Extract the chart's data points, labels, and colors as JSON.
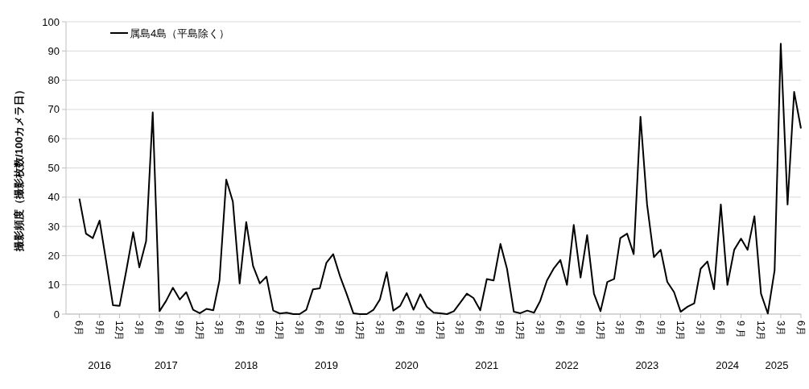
{
  "chart_data": {
    "type": "line",
    "ylabel": "撮影頻度（撮影枚数/100カメラ日）",
    "x": [
      "2016-06",
      "2016-07",
      "2016-08",
      "2016-09",
      "2016-10",
      "2016-11",
      "2016-12",
      "2017-01",
      "2017-02",
      "2017-03",
      "2017-04",
      "2017-05",
      "2017-06",
      "2017-07",
      "2017-08",
      "2017-09",
      "2017-10",
      "2017-11",
      "2017-12",
      "2018-01",
      "2018-02",
      "2018-03",
      "2018-04",
      "2018-05",
      "2018-06",
      "2018-07",
      "2018-08",
      "2018-09",
      "2018-10",
      "2018-11",
      "2018-12",
      "2019-01",
      "2019-02",
      "2019-03",
      "2019-04",
      "2019-05",
      "2019-06",
      "2019-07",
      "2019-08",
      "2019-09",
      "2019-10",
      "2019-11",
      "2019-12",
      "2020-01",
      "2020-02",
      "2020-03",
      "2020-04",
      "2020-05",
      "2020-06",
      "2020-07",
      "2020-08",
      "2020-09",
      "2020-10",
      "2020-11",
      "2020-12",
      "2021-01",
      "2021-02",
      "2021-03",
      "2021-04",
      "2021-05",
      "2021-06",
      "2021-07",
      "2021-08",
      "2021-09",
      "2021-10",
      "2021-11",
      "2021-12",
      "2022-01",
      "2022-02",
      "2022-03",
      "2022-04",
      "2022-05",
      "2022-06",
      "2022-07",
      "2022-08",
      "2022-09",
      "2022-10",
      "2022-11",
      "2022-12",
      "2023-01",
      "2023-02",
      "2023-03",
      "2023-04",
      "2023-05",
      "2023-06",
      "2023-07",
      "2023-08",
      "2023-09",
      "2023-10",
      "2023-11",
      "2023-12",
      "2024-01",
      "2024-02",
      "2024-03",
      "2024-04",
      "2024-05",
      "2024-06",
      "2024-07",
      "2024-08",
      "2024-09",
      "2024-10",
      "2024-11",
      "2024-12",
      "2025-01",
      "2025-02",
      "2025-03",
      "2025-04",
      "2025-05",
      "2025-06"
    ],
    "series": [
      {
        "name": "属島4島（平島除く）",
        "color": "#000000",
        "values": [
          39.5,
          27.5,
          26,
          32,
          18,
          3,
          2.8,
          15,
          28,
          16,
          25,
          69,
          1,
          4.5,
          9,
          5,
          7.5,
          1.5,
          0.3,
          1.8,
          1.3,
          11.5,
          46,
          38.5,
          10.5,
          31.5,
          16.5,
          10.5,
          12.8,
          1.2,
          0.2,
          0.5,
          0,
          0,
          1.5,
          8.5,
          8.8,
          17.5,
          20.5,
          13,
          7,
          0.3,
          0,
          0,
          1.5,
          5,
          14.3,
          1.2,
          2.8,
          7.2,
          1.5,
          6.8,
          2.5,
          0.5,
          0.3,
          0,
          1,
          3.8,
          7,
          5.5,
          1.3,
          12,
          11.5,
          24,
          15.5,
          0.8,
          0.3,
          1.2,
          0.5,
          4.5,
          11.5,
          15.5,
          18.5,
          10,
          30.5,
          12.5,
          27,
          7,
          1,
          11,
          12,
          26,
          27.5,
          20.5,
          67.5,
          37.5,
          19.5,
          22,
          11,
          7.5,
          0.8,
          2.5,
          3.7,
          15.5,
          18,
          8.5,
          37.5,
          10,
          22,
          25.8,
          22,
          33.5,
          7,
          0.2,
          15,
          92.5,
          37.5,
          76,
          63.5
        ]
      }
    ],
    "xlim": [
      "2016-04",
      "2025-06"
    ],
    "xticks": [
      {
        "value": "2016-06",
        "label": "6月"
      },
      {
        "value": "2016-09",
        "label": "9月"
      },
      {
        "value": "2016-12",
        "label": "12月"
      },
      {
        "value": "2017-03",
        "label": "3月"
      },
      {
        "value": "2017-06",
        "label": "6月"
      },
      {
        "value": "2017-09",
        "label": "9月"
      },
      {
        "value": "2017-12",
        "label": "12月"
      },
      {
        "value": "2018-03",
        "label": "3月"
      },
      {
        "value": "2018-06",
        "label": "6月"
      },
      {
        "value": "2018-09",
        "label": "9月"
      },
      {
        "value": "2018-12",
        "label": "12月"
      },
      {
        "value": "2019-03",
        "label": "3月"
      },
      {
        "value": "2019-06",
        "label": "6月"
      },
      {
        "value": "2019-09",
        "label": "9月"
      },
      {
        "value": "2019-12",
        "label": "12月"
      },
      {
        "value": "2020-03",
        "label": "3月"
      },
      {
        "value": "2020-06",
        "label": "6月"
      },
      {
        "value": "2020-09",
        "label": "9月"
      },
      {
        "value": "2020-12",
        "label": "12月"
      },
      {
        "value": "2021-03",
        "label": "3月"
      },
      {
        "value": "2021-06",
        "label": "6月"
      },
      {
        "value": "2021-09",
        "label": "9月"
      },
      {
        "value": "2021-12",
        "label": "12月"
      },
      {
        "value": "2022-03",
        "label": "3月"
      },
      {
        "value": "2022-06",
        "label": "6月"
      },
      {
        "value": "2022-09",
        "label": "9月"
      },
      {
        "value": "2022-12",
        "label": "12月"
      },
      {
        "value": "2023-03",
        "label": "3月"
      },
      {
        "value": "2023-06",
        "label": "6月"
      },
      {
        "value": "2023-09",
        "label": "9月"
      },
      {
        "value": "2023-12",
        "label": "12月"
      },
      {
        "value": "2024-03",
        "label": "3月"
      },
      {
        "value": "2024-06",
        "label": "6月"
      },
      {
        "value": "2024-09",
        "label": "9 月"
      },
      {
        "value": "2024-12",
        "label": "12月"
      },
      {
        "value": "2025-03",
        "label": "3月"
      },
      {
        "value": "2025-06",
        "label": "6月"
      }
    ],
    "ylim": [
      0,
      100
    ],
    "yticks": [
      0,
      10,
      20,
      30,
      40,
      50,
      60,
      70,
      80,
      90,
      100
    ],
    "grid": "y",
    "legend": "top left",
    "marker": "none",
    "line_style": "solid",
    "annotations": [
      "2016",
      "2017",
      "2018",
      "2019",
      "2020",
      "2021",
      "2022",
      "2023",
      "2024",
      "2025"
    ]
  }
}
